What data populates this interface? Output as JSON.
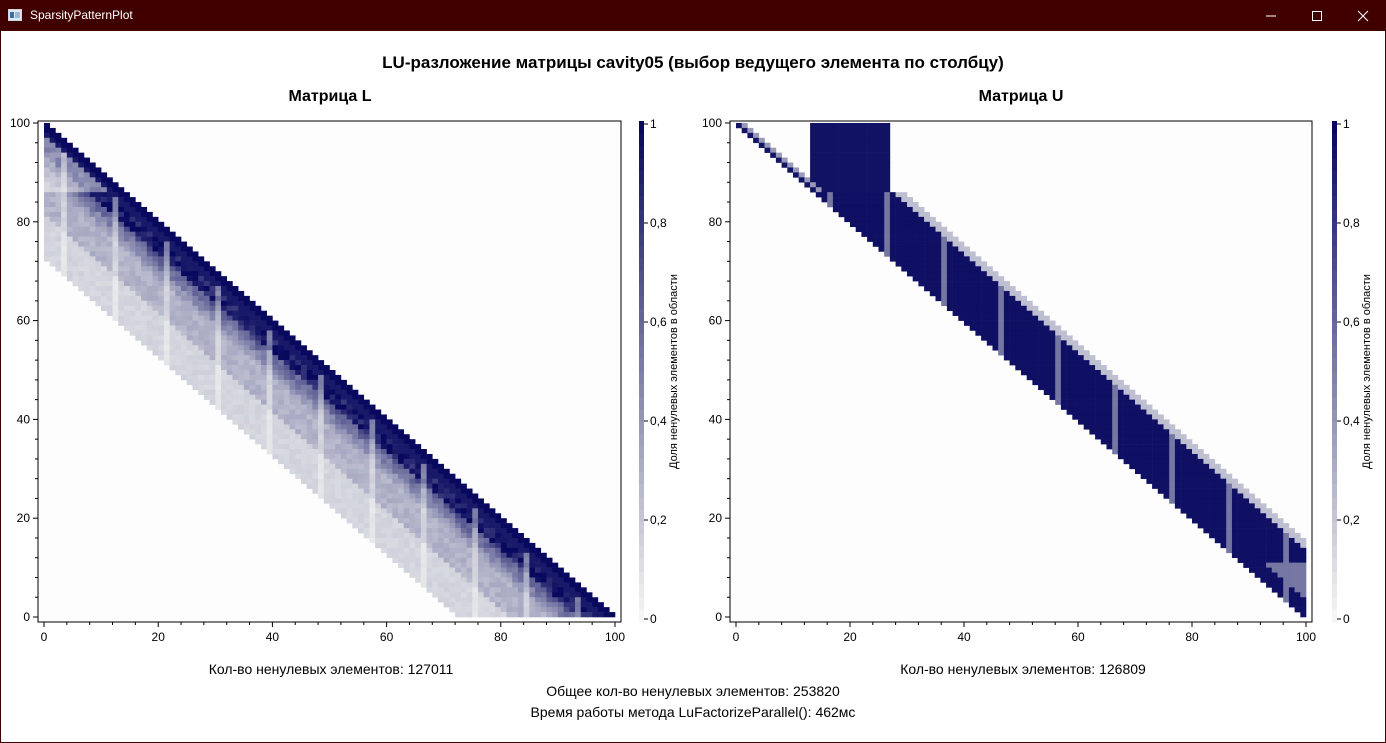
{
  "window": {
    "title": "SparsityPatternPlot",
    "icons": [
      "app-icon",
      "minimize-icon",
      "maximize-icon",
      "close-icon"
    ]
  },
  "header": {
    "title": "LU-разложение матрицы cavity05 (выбор ведущего элемента по столбцу)"
  },
  "footer": {
    "total_nnz": "Общее кол-во ненулевых элементов: 253820",
    "time": "Время работы метода LuFactorizeParallel(): 462мс"
  },
  "colors": {
    "titlebar": "#400000",
    "colormap_low": "#fafcf6",
    "colormap_high": "#08085e"
  },
  "chart_data": [
    {
      "type": "heatmap",
      "title": "Матрица L",
      "caption": "Кол-во ненулевых элементов: 127011",
      "xlim": [
        0,
        100
      ],
      "ylim": [
        0,
        100
      ],
      "x_ticks": [
        "0",
        "20",
        "40",
        "60",
        "80",
        "100"
      ],
      "y_ticks": [
        "0",
        "20",
        "40",
        "60",
        "80",
        "100"
      ],
      "colorbar": {
        "label": "Доля ненулевых элементов в области",
        "range": [
          0,
          1
        ],
        "ticks": [
          "0",
          "0,2",
          "0,4",
          "0,6",
          "0,8",
          "1"
        ]
      },
      "pattern": "lower-triangular band",
      "band_width_estimate": 27,
      "diagonal_density": 1.0
    },
    {
      "type": "heatmap",
      "title": "Матрица U",
      "caption": "Кол-во ненулевых элементов: 126809",
      "xlim": [
        0,
        100
      ],
      "ylim": [
        0,
        100
      ],
      "x_ticks": [
        "0",
        "20",
        "40",
        "60",
        "80",
        "100"
      ],
      "y_ticks": [
        "0",
        "20",
        "40",
        "60",
        "80",
        "100"
      ],
      "colorbar": {
        "label": "Доля ненулевых элементов в области",
        "range": [
          0,
          1
        ],
        "ticks": [
          "0",
          "0,2",
          "0,4",
          "0,6",
          "0,8",
          "1"
        ]
      },
      "pattern": "upper-triangular band",
      "band_width_estimate": 14,
      "diagonal_density": 1.0
    }
  ]
}
